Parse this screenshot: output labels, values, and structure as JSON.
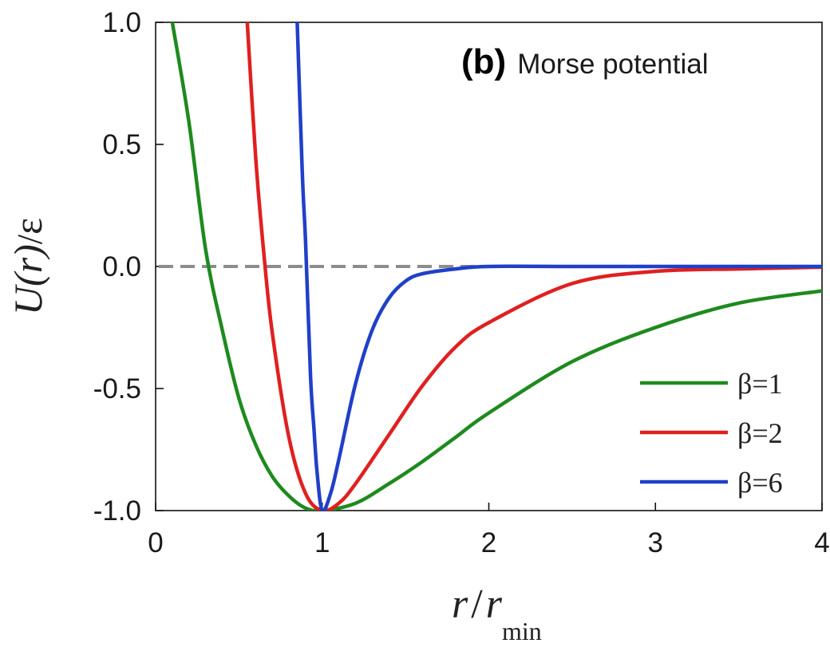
{
  "chart_data": {
    "type": "line",
    "panel_label": "(b)",
    "title": "Morse potential",
    "xlabel_main": "r",
    "xlabel_slash": "/",
    "xlabel_sub_main": "r",
    "xlabel_sub": "min",
    "ylabel_main": "U(r)",
    "ylabel_slash": "/",
    "ylabel_unit": "ε",
    "xlim": [
      0,
      4
    ],
    "ylim": [
      -1.0,
      1.0
    ],
    "xticks": [
      "0",
      "1",
      "2",
      "3",
      "4"
    ],
    "yticks": [
      "-1.0",
      "-0.5",
      "0.0",
      "0.5",
      "1.0"
    ],
    "legend_position": "bottom-right",
    "reference_line": {
      "y": 0.0,
      "style": "dashed",
      "color": "#8c8c8c"
    },
    "series": [
      {
        "name": "β=1",
        "beta": 1,
        "color": "#1e8a1e",
        "x": [
          0.1,
          0.2,
          0.3,
          0.4,
          0.5,
          0.6,
          0.7,
          0.8,
          0.9,
          1.0,
          1.2,
          1.4,
          1.6,
          1.8,
          2.0,
          2.5,
          3.0,
          3.5,
          4.0
        ],
        "y": [
          1.0,
          0.59,
          0.07,
          -0.26,
          -0.54,
          -0.73,
          -0.86,
          -0.94,
          -0.99,
          -1.0,
          -0.97,
          -0.89,
          -0.8,
          -0.7,
          -0.6,
          -0.39,
          -0.25,
          -0.15,
          -0.1
        ]
      },
      {
        "name": "β=2",
        "beta": 2,
        "color": "#e02020",
        "x": [
          0.55,
          0.6,
          0.65,
          0.7,
          0.8,
          0.9,
          1.0,
          1.1,
          1.2,
          1.4,
          1.6,
          1.8,
          2.0,
          2.5,
          3.0,
          3.5,
          4.0
        ],
        "y": [
          1.0,
          0.45,
          0.05,
          -0.27,
          -0.7,
          -0.93,
          -1.0,
          -0.97,
          -0.89,
          -0.69,
          -0.49,
          -0.33,
          -0.23,
          -0.07,
          -0.02,
          -0.01,
          -0.003
        ]
      },
      {
        "name": "β=6",
        "beta": 6,
        "color": "#2040c8",
        "x": [
          0.85,
          0.88,
          0.9,
          0.93,
          0.95,
          0.97,
          1.0,
          1.05,
          1.1,
          1.2,
          1.3,
          1.4,
          1.5,
          1.6,
          1.8,
          2.0,
          2.5,
          3.0,
          4.0
        ],
        "y": [
          1.0,
          0.39,
          0.1,
          -0.45,
          -0.66,
          -0.85,
          -1.0,
          -0.93,
          -0.79,
          -0.48,
          -0.26,
          -0.13,
          -0.06,
          -0.03,
          -0.01,
          0.0,
          0.0,
          0.0,
          0.0
        ]
      }
    ]
  }
}
